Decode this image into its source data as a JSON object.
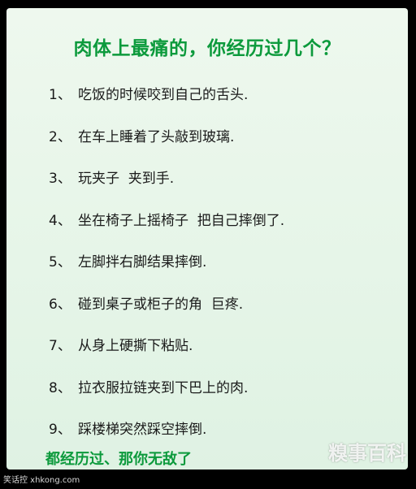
{
  "title": "肉体上最痛的，你经历过几个？",
  "items": [
    {
      "num": "1、",
      "text": "吃饭的时候咬到自己的舌头."
    },
    {
      "num": "2、",
      "text": "在车上睡着了头敲到玻璃."
    },
    {
      "num": "3、",
      "text": "玩夹子  夹到手."
    },
    {
      "num": "4、",
      "text": "坐在椅子上摇椅子  把自己摔倒了."
    },
    {
      "num": "5、",
      "text": "左脚拌右脚结果摔倒."
    },
    {
      "num": "6、",
      "text": "碰到桌子或柜子的角  巨疼."
    },
    {
      "num": "7、",
      "text": "从身上硬撕下粘贴."
    },
    {
      "num": "8、",
      "text": "拉衣服拉链夹到下巴上的肉."
    },
    {
      "num": "9、",
      "text": "踩楼梯突然踩空摔倒."
    }
  ],
  "conclusion": "都经历过、那你无敌了",
  "watermark_left": "笑话控 xhkong.com",
  "watermark_right": "糗事百科",
  "colors": {
    "accent_green": "#0c9a3c",
    "panel_bg": "#e6f5e8",
    "text": "#1a1a1a"
  }
}
